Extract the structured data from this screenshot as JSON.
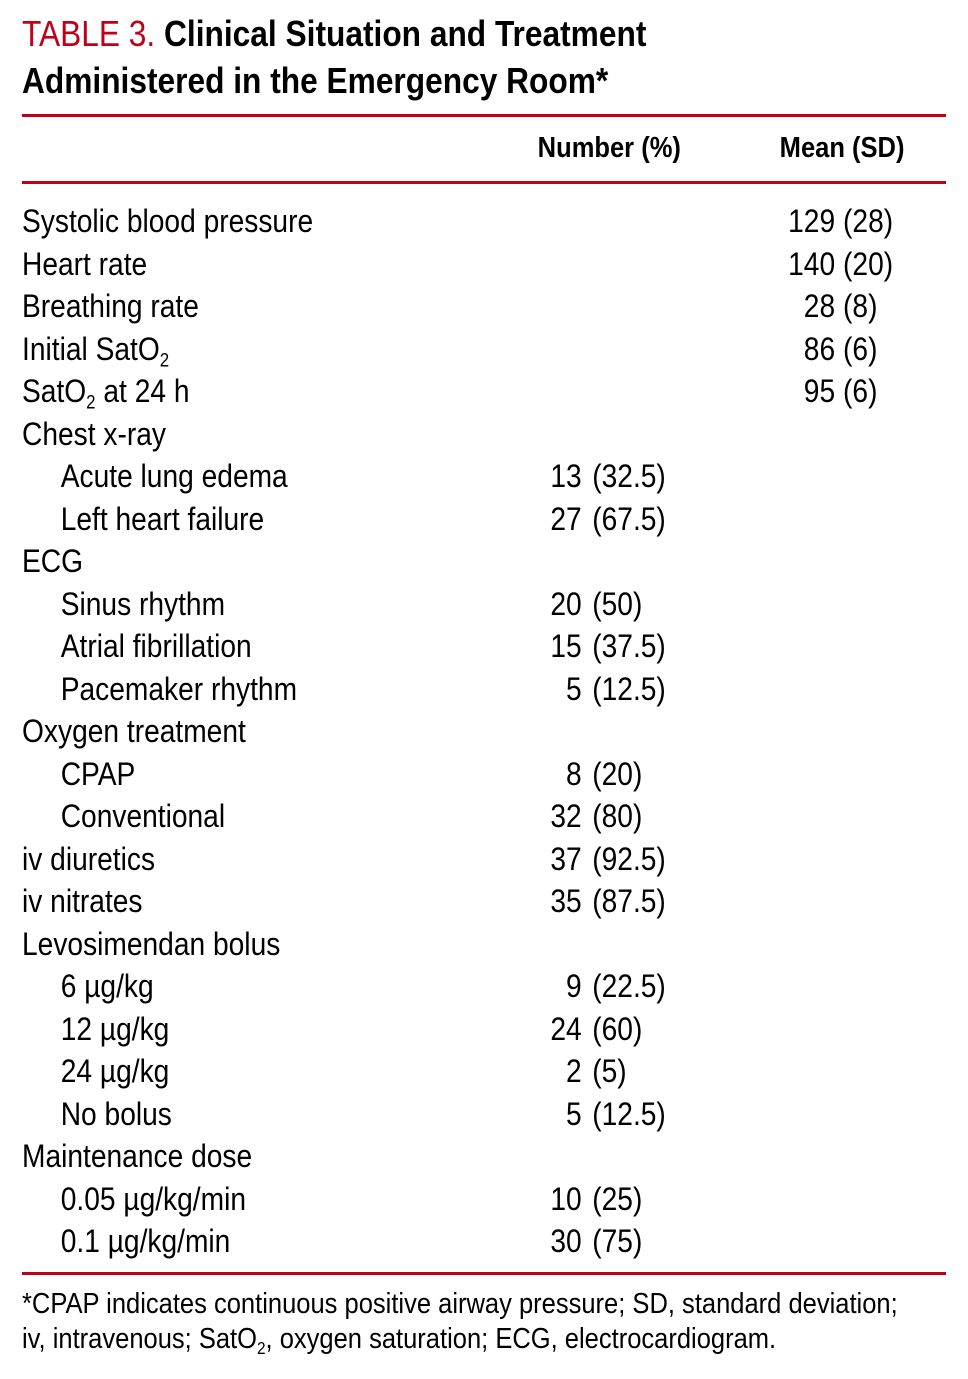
{
  "title": {
    "label": "TABLE 3.",
    "text": "Clinical Situation and Treatment",
    "text2": "Administered in the Emergency Room*"
  },
  "colors": {
    "accent": "#c00018"
  },
  "columns": [
    "Number (%)",
    "Mean (SD)"
  ],
  "rows": [
    {
      "label": "Systolic blood pressure",
      "indent": false,
      "number": "",
      "mean": "129 (28)"
    },
    {
      "label": "Heart rate",
      "indent": false,
      "number": "",
      "mean": "140 (20)"
    },
    {
      "label": "Breathing rate",
      "indent": false,
      "number": "",
      "mean": "28 (8)"
    },
    {
      "label": "Initial SatO",
      "sub": "2",
      "after": "",
      "indent": false,
      "number": "",
      "mean": "86 (6)"
    },
    {
      "label": "SatO",
      "sub": "2",
      "after": " at 24 h",
      "indent": false,
      "number": "",
      "mean": "95 (6)"
    },
    {
      "label": "Chest x-ray",
      "indent": false,
      "number": "",
      "mean": ""
    },
    {
      "label": "Acute lung edema",
      "indent": true,
      "number": "13 (32.5)",
      "mean": ""
    },
    {
      "label": "Left heart failure",
      "indent": true,
      "number": "27 (67.5)",
      "mean": ""
    },
    {
      "label": "ECG",
      "indent": false,
      "number": "",
      "mean": ""
    },
    {
      "label": "Sinus rhythm",
      "indent": true,
      "number": "20 (50)",
      "mean": ""
    },
    {
      "label": "Atrial fibrillation",
      "indent": true,
      "number": "15 (37.5)",
      "mean": ""
    },
    {
      "label": "Pacemaker rhythm",
      "indent": true,
      "number": "5 (12.5)",
      "mean": ""
    },
    {
      "label": "Oxygen treatment",
      "indent": false,
      "number": "",
      "mean": ""
    },
    {
      "label": "CPAP",
      "indent": true,
      "number": "8 (20)",
      "mean": ""
    },
    {
      "label": "Conventional",
      "indent": true,
      "number": "32 (80)",
      "mean": ""
    },
    {
      "label": "iv diuretics",
      "indent": false,
      "number": "37 (92.5)",
      "mean": ""
    },
    {
      "label": "iv nitrates",
      "indent": false,
      "number": "35 (87.5)",
      "mean": ""
    },
    {
      "label": "Levosimendan bolus",
      "indent": false,
      "number": "",
      "mean": ""
    },
    {
      "label": "6 µg/kg",
      "indent": true,
      "number": "9 (22.5)",
      "mean": ""
    },
    {
      "label": "12 µg/kg",
      "indent": true,
      "number": "24 (60)",
      "mean": ""
    },
    {
      "label": "24 µg/kg",
      "indent": true,
      "number": "2 (5)",
      "mean": ""
    },
    {
      "label": "No bolus",
      "indent": true,
      "number": "5 (12.5)",
      "mean": ""
    },
    {
      "label": "Maintenance dose",
      "indent": false,
      "number": "",
      "mean": ""
    },
    {
      "label": "0.05 µg/kg/min",
      "indent": true,
      "number": "10 (25)",
      "mean": ""
    },
    {
      "label": "0.1 µg/kg/min",
      "indent": true,
      "number": "30 (75)",
      "mean": ""
    }
  ],
  "footnote": {
    "line1": "*CPAP indicates continuous positive airway pressure; SD, standard deviation;",
    "line2a": "iv, intravenous; SatO",
    "line2sub": "2",
    "line2b": ", oxygen saturation; ECG, electrocardiogram."
  }
}
